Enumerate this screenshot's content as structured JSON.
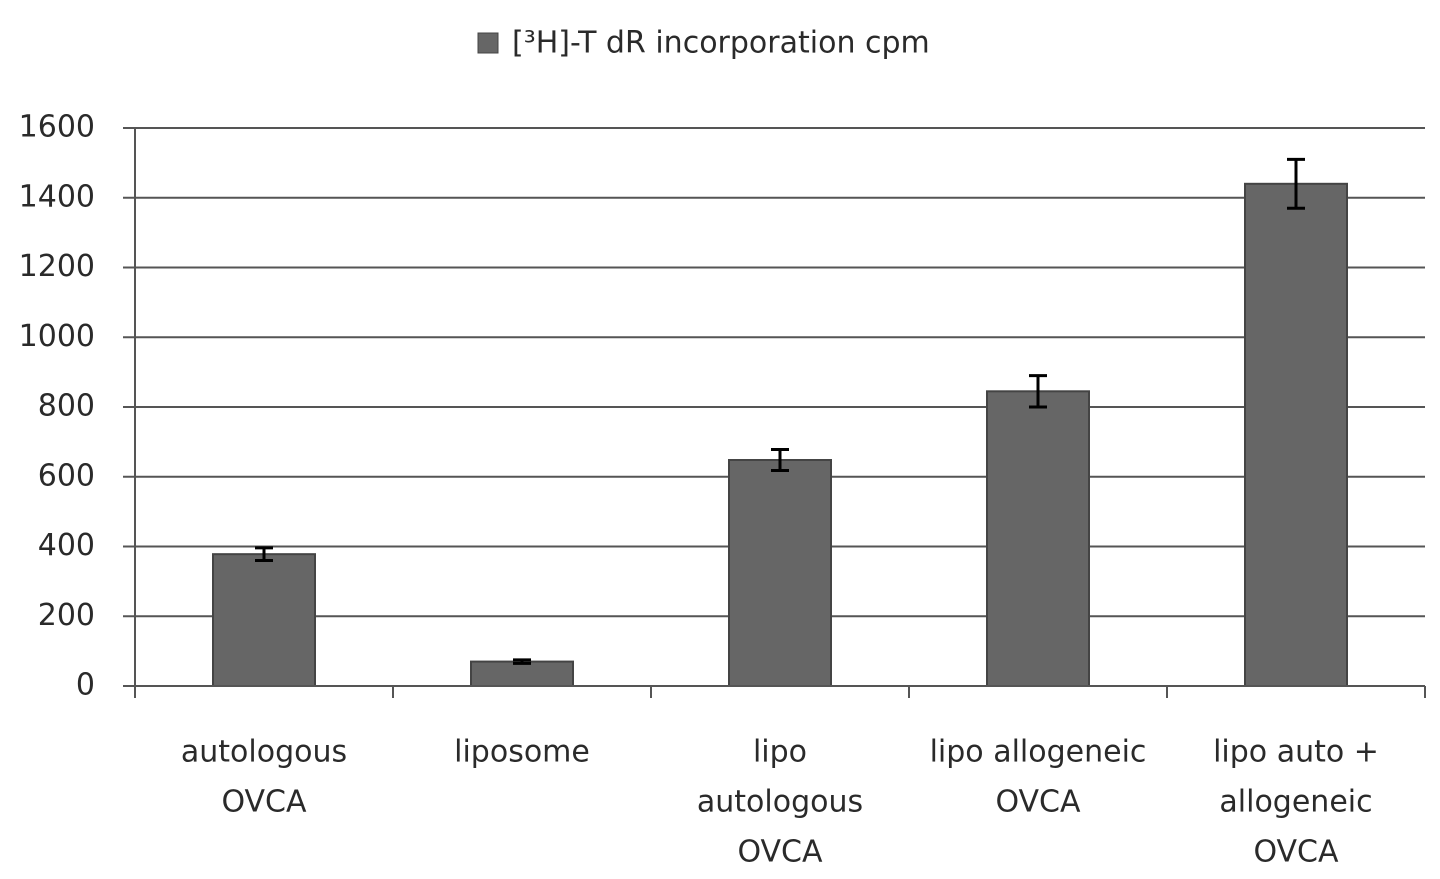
{
  "chart_data": {
    "type": "bar",
    "legend": "[³H]-T  dR incorporation cpm",
    "categories": [
      [
        "autologous",
        "OVCA"
      ],
      [
        "liposome"
      ],
      [
        "lipo",
        "autologous",
        "OVCA"
      ],
      [
        "lipo allogeneic",
        "OVCA"
      ],
      [
        "lipo auto +",
        "allogeneic",
        "OVCA"
      ]
    ],
    "series": [
      {
        "name": "[³H]-T  dR incorporation cpm",
        "color": "#666666",
        "values": [
          378,
          70,
          648,
          845,
          1440
        ],
        "errors": [
          18,
          5,
          30,
          45,
          70
        ]
      }
    ],
    "ylim": [
      0,
      1600
    ],
    "yticks": [
      0,
      200,
      400,
      600,
      800,
      1000,
      1200,
      1400,
      1600
    ],
    "grid": true
  }
}
